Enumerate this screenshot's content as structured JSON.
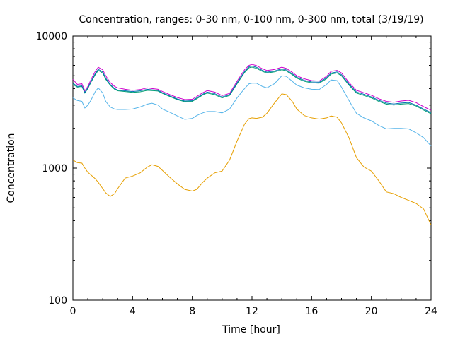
{
  "chart_data": {
    "type": "line",
    "title": "Concentration, ranges: 0-30 nm, 0-100 nm, 0-300 nm, total (3/19/19)",
    "xlabel": "Time [hour]",
    "ylabel": "Concentration",
    "xlim": [
      0,
      24
    ],
    "ylim": [
      100,
      10000
    ],
    "yscale": "log",
    "grid": false,
    "x_ticks": [
      "0",
      "4",
      "8",
      "12",
      "16",
      "20",
      "24"
    ],
    "y_ticks": [
      "100",
      "1000",
      "10000"
    ],
    "x_tick_values": [
      0,
      4,
      8,
      12,
      16,
      20,
      24
    ],
    "y_tick_values": [
      100,
      1000,
      10000
    ],
    "x": [
      0,
      0.3,
      0.6,
      0.8,
      1.0,
      1.2,
      1.5,
      1.7,
      2.0,
      2.2,
      2.5,
      2.8,
      3.0,
      3.5,
      4.0,
      4.5,
      5.0,
      5.3,
      5.7,
      6.0,
      6.5,
      7.0,
      7.5,
      8.0,
      8.3,
      8.7,
      9.0,
      9.5,
      10.0,
      10.5,
      11.0,
      11.5,
      11.8,
      12.0,
      12.3,
      12.7,
      13.0,
      13.5,
      14.0,
      14.3,
      14.7,
      15.0,
      15.5,
      16.0,
      16.5,
      17.0,
      17.3,
      17.7,
      18.0,
      18.5,
      19.0,
      19.5,
      20.0,
      20.5,
      21.0,
      21.5,
      22.0,
      22.5,
      23.0,
      23.5,
      24.0
    ],
    "series": [
      {
        "color": "#e69f00",
        "values": [
          1150,
          1100,
          1090,
          1000,
          930,
          890,
          830,
          780,
          700,
          650,
          610,
          640,
          700,
          840,
          870,
          920,
          1020,
          1060,
          1030,
          960,
          850,
          760,
          690,
          670,
          690,
          780,
          840,
          920,
          950,
          1150,
          1600,
          2150,
          2370,
          2400,
          2380,
          2430,
          2600,
          3100,
          3650,
          3600,
          3200,
          2800,
          2500,
          2400,
          2350,
          2400,
          2480,
          2430,
          2200,
          1700,
          1200,
          1020,
          950,
          800,
          660,
          640,
          600,
          570,
          540,
          490,
          370
        ]
      },
      {
        "color": "#56b4e9",
        "values": [
          3400,
          3250,
          3200,
          2850,
          3000,
          3250,
          3800,
          4050,
          3700,
          3200,
          2900,
          2800,
          2780,
          2780,
          2800,
          2900,
          3050,
          3100,
          3000,
          2800,
          2650,
          2480,
          2340,
          2380,
          2500,
          2620,
          2680,
          2680,
          2620,
          2800,
          3400,
          4000,
          4350,
          4400,
          4400,
          4150,
          4050,
          4350,
          5000,
          4950,
          4550,
          4250,
          4050,
          3950,
          3930,
          4300,
          4650,
          4600,
          4100,
          3250,
          2600,
          2400,
          2280,
          2100,
          1980,
          2000,
          2000,
          1980,
          1850,
          1700,
          1470
        ]
      },
      {
        "color": "#009e73",
        "values": [
          4300,
          4100,
          4150,
          3700,
          4000,
          4450,
          5100,
          5500,
          5250,
          4700,
          4250,
          3950,
          3850,
          3800,
          3750,
          3780,
          3880,
          3860,
          3830,
          3680,
          3480,
          3300,
          3180,
          3200,
          3350,
          3580,
          3700,
          3600,
          3400,
          3550,
          4350,
          5300,
          5750,
          5820,
          5700,
          5400,
          5250,
          5350,
          5550,
          5450,
          5100,
          4800,
          4550,
          4420,
          4400,
          4750,
          5150,
          5250,
          5000,
          4250,
          3700,
          3550,
          3400,
          3200,
          3050,
          3000,
          3050,
          3080,
          2950,
          2750,
          2580
        ]
      },
      {
        "color": "#0072b2",
        "values": [
          4400,
          4150,
          4200,
          3750,
          4050,
          4500,
          5200,
          5600,
          5350,
          4800,
          4300,
          4000,
          3900,
          3850,
          3800,
          3850,
          3950,
          3920,
          3880,
          3720,
          3520,
          3340,
          3220,
          3240,
          3400,
          3630,
          3760,
          3660,
          3450,
          3600,
          4420,
          5380,
          5850,
          5930,
          5800,
          5500,
          5330,
          5430,
          5650,
          5540,
          5180,
          4880,
          4620,
          4490,
          4470,
          4830,
          5240,
          5350,
          5100,
          4330,
          3770,
          3620,
          3460,
          3260,
          3110,
          3060,
          3110,
          3140,
          3000,
          2800,
          2630
        ]
      },
      {
        "color": "#cc00cc",
        "values": [
          4700,
          4300,
          4350,
          3850,
          4150,
          4650,
          5400,
          5800,
          5550,
          5000,
          4450,
          4150,
          4050,
          3950,
          3880,
          3930,
          4050,
          4000,
          3950,
          3800,
          3600,
          3420,
          3300,
          3320,
          3480,
          3720,
          3860,
          3760,
          3540,
          3680,
          4550,
          5550,
          6000,
          6100,
          5980,
          5650,
          5480,
          5580,
          5800,
          5680,
          5320,
          5000,
          4750,
          4600,
          4560,
          4950,
          5400,
          5500,
          5250,
          4450,
          3880,
          3720,
          3560,
          3350,
          3200,
          3150,
          3220,
          3260,
          3130,
          2920,
          2740
        ]
      }
    ]
  }
}
